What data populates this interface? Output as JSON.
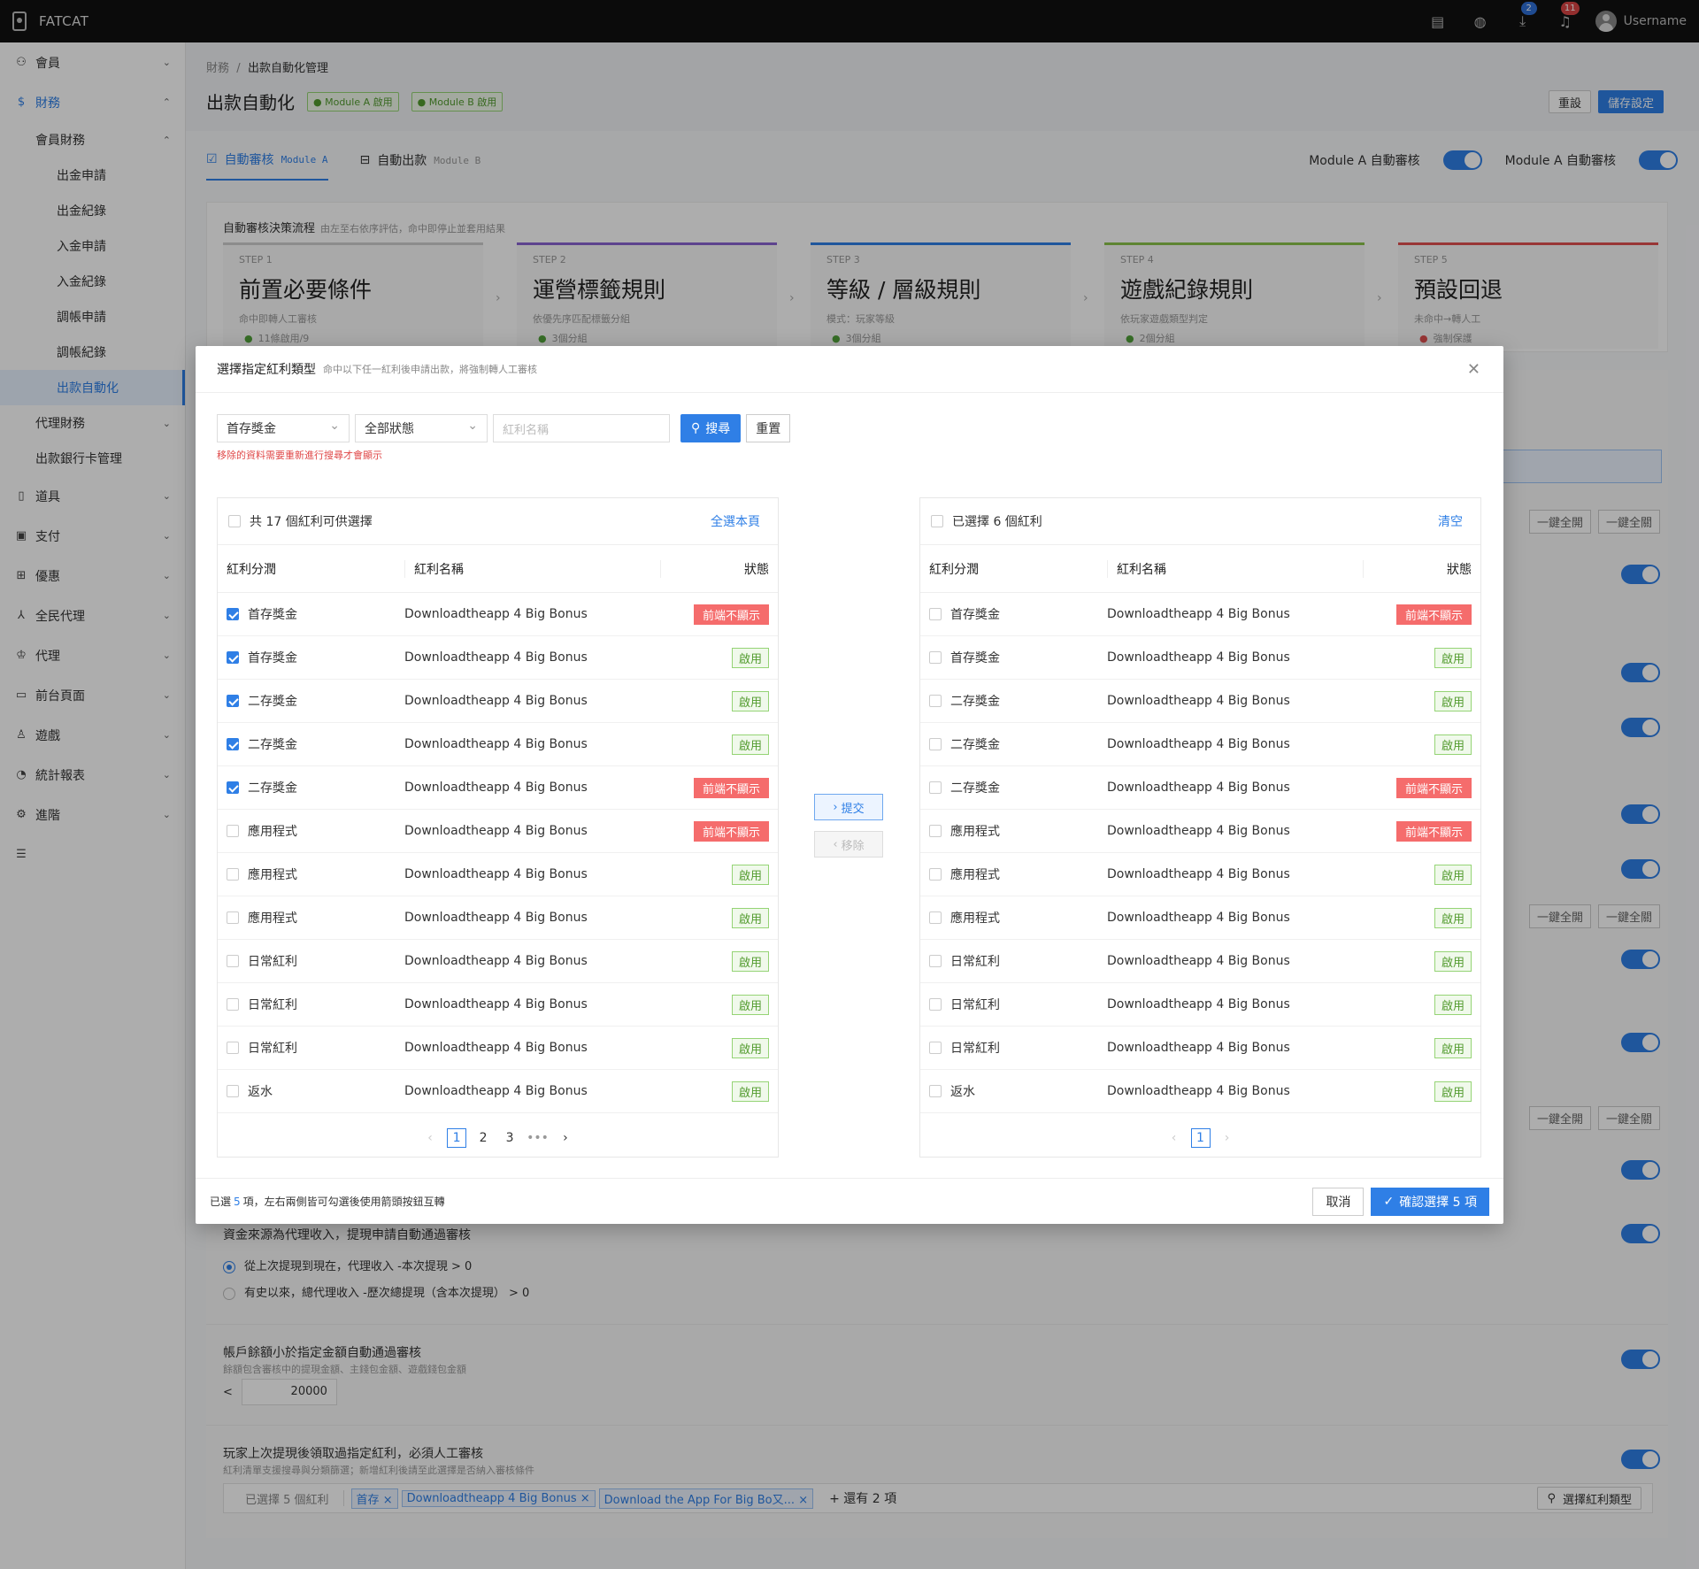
{
  "app": {
    "name": "FATCAT",
    "username": "Username",
    "download_badge": "2",
    "bell_badge": "11"
  },
  "sidebar": {
    "member": "會員",
    "finance": "財務",
    "member_finance": "會員財務",
    "sub": [
      "出金申請",
      "出金紀錄",
      "入金申請",
      "入金紀錄",
      "調帳申請",
      "調帳紀錄",
      "出款自動化"
    ],
    "agent_finance": "代理財務",
    "bank_card": "出款銀行卡管理",
    "others": [
      "道具",
      "支付",
      "優惠",
      "全民代理",
      "代理",
      "前台頁面",
      "遊戲",
      "統計報表",
      "進階"
    ]
  },
  "breadcrumb": {
    "parent": "財務",
    "sep": "/",
    "current": "出款自動化管理"
  },
  "page": {
    "title": "出款自動化",
    "tag_a": "● Module A 啟用",
    "tag_b": "● Module B 啟用",
    "reset": "重設",
    "save": "儲存設定"
  },
  "tabs": {
    "auto_review": "自動審核",
    "auto_review_mod": "Module A",
    "auto_payout": "自動出款",
    "auto_payout_mod": "Module B"
  },
  "toggles": {
    "a": "Module A 自動審核",
    "b": "Module A 自動審核"
  },
  "flow": {
    "title": "自動審核決策流程",
    "subtitle": "由左至右依序評估，命中即停止並套用結果",
    "steps": [
      {
        "step": "STEP 1",
        "name": "前置必要條件",
        "desc": "命中即轉人工審核",
        "stat": "11條啟用/9",
        "color": "#cfcfcf"
      },
      {
        "step": "STEP 2",
        "name": "運營標籤規則",
        "desc": "依優先序匹配標籤分組",
        "stat": "3個分組",
        "color": "#8a63d2"
      },
      {
        "step": "STEP 3",
        "name": "等級 / 層級規則",
        "desc": "模式：玩家等級",
        "stat": "3個分組",
        "color": "#2f7fe6"
      },
      {
        "step": "STEP 4",
        "name": "遊戲紀錄規則",
        "desc": "依玩家遊戲類型判定",
        "stat": "2個分組",
        "color": "#8bc34a"
      },
      {
        "step": "STEP 5",
        "name": "預設回退",
        "desc": "未命中→轉人工",
        "stat": "強制保護",
        "color": "#e05050"
      }
    ]
  },
  "bg": {
    "one_key_on": "一鍵全開",
    "one_key_off": "一鍵全關",
    "agent_income": "資金來源為代理收入，提現申請自動通過審核",
    "radio1": "從上次提現到現在，代理收入 -本次提現 > 0",
    "radio2": "有史以來，總代理收入 -歷次總提現（含本次提現） > 0",
    "balance_title": "帳戶餘額小於指定金額自動通過審核",
    "balance_sub": "餘額包含審核中的提現金額、主錢包金額、遊戲錢包金額",
    "balance_op": "<",
    "balance_val": "20000",
    "bonus_title": "玩家上次提現後領取過指定紅利，必須人工審核",
    "bonus_sub": "紅利清單支援搜尋與分類篩選；新增紅利後請至此選擇是否納入審核條件",
    "chips_label": "已選擇 5 個紅利",
    "chips": [
      "首存",
      "Downloadtheapp 4 Big Bonus",
      "Download the App For Big Bo又..."
    ],
    "chips_more": "+ 還有 2 項",
    "choose_btn": "選擇紅利類型"
  },
  "modal": {
    "title": "選擇指定紅利類型",
    "subtitle": "命中以下任一紅利後申請出款，將強制轉人工審核",
    "filter_category": "首存獎金",
    "filter_status": "全部狀態",
    "search_placeholder": "紅利名稱",
    "search_btn": "搜尋",
    "reset_btn": "重置",
    "warning": "移除的資料需要重新進行搜尋才會顯示",
    "left": {
      "title": "共 17 個紅利可供選擇",
      "action": "全選本頁"
    },
    "right": {
      "title": "已選擇 6 個紅利",
      "action": "清空"
    },
    "cols": {
      "cat": "紅利分潤",
      "name": "紅利名稱",
      "status": "狀態"
    },
    "rows": [
      {
        "cat": "首存獎金",
        "name": "Downloadtheapp 4 Big Bonus",
        "status": "前端不顯示",
        "bad": true,
        "checked": true
      },
      {
        "cat": "首存獎金",
        "name": "Downloadtheapp 4 Big Bonus",
        "status": "啟用",
        "bad": false,
        "checked": true
      },
      {
        "cat": "二存獎金",
        "name": "Downloadtheapp 4 Big Bonus",
        "status": "啟用",
        "bad": false,
        "checked": true
      },
      {
        "cat": "二存獎金",
        "name": "Downloadtheapp 4 Big Bonus",
        "status": "啟用",
        "bad": false,
        "checked": true
      },
      {
        "cat": "二存獎金",
        "name": "Downloadtheapp 4 Big Bonus",
        "status": "前端不顯示",
        "bad": true,
        "checked": true
      },
      {
        "cat": "應用程式",
        "name": "Downloadtheapp 4 Big Bonus",
        "status": "前端不顯示",
        "bad": true,
        "checked": false
      },
      {
        "cat": "應用程式",
        "name": "Downloadtheapp 4 Big Bonus",
        "status": "啟用",
        "bad": false,
        "checked": false
      },
      {
        "cat": "應用程式",
        "name": "Downloadtheapp 4 Big Bonus",
        "status": "啟用",
        "bad": false,
        "checked": false
      },
      {
        "cat": "日常紅利",
        "name": "Downloadtheapp 4 Big Bonus",
        "status": "啟用",
        "bad": false,
        "checked": false
      },
      {
        "cat": "日常紅利",
        "name": "Downloadtheapp 4 Big Bonus",
        "status": "啟用",
        "bad": false,
        "checked": false
      },
      {
        "cat": "日常紅利",
        "name": "Downloadtheapp 4 Big Bonus",
        "status": "啟用",
        "bad": false,
        "checked": false
      },
      {
        "cat": "返水",
        "name": "Downloadtheapp 4 Big Bonus",
        "status": "啟用",
        "bad": false,
        "checked": false
      }
    ],
    "left_pages": [
      "1",
      "2",
      "3",
      "•••"
    ],
    "right_pages": [
      "1"
    ],
    "submit": "提交",
    "remove": "移除",
    "footer_pre": "已選",
    "footer_n": "5",
    "footer_post": "項，左右兩側皆可勾選後使用箭頭按鈕互轉",
    "cancel": "取消",
    "confirm": "確認選擇 5 項"
  }
}
